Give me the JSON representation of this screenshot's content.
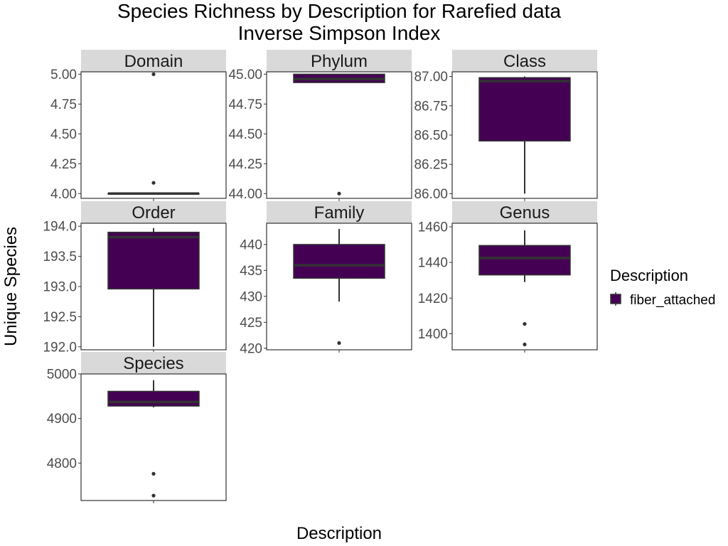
{
  "chart_data": {
    "type": "box",
    "title": "Species Richness by Description for Rarefied data",
    "subtitle": "Inverse Simpson Index",
    "xlabel": "Description",
    "ylabel": "Unique Species",
    "legend": {
      "title": "Description",
      "position": "right",
      "entries": [
        {
          "label": "fiber_attached",
          "color": "#440154"
        }
      ]
    },
    "grid": false,
    "colors": {
      "box_fill": "#440154",
      "box_line": "#333333",
      "strip_fill": "#d9d9d9",
      "panel_border": "#333333",
      "tick_label": "#4d4d4d"
    },
    "panels": [
      {
        "name": "Domain",
        "ylim": [
          3.96,
          5.02
        ],
        "ticks": [
          4.0,
          4.25,
          4.5,
          4.75,
          5.0
        ],
        "tick_labels": [
          "4.00",
          "4.25",
          "4.50",
          "4.75",
          "5.00"
        ],
        "box": {
          "lower_whisker": 4.0,
          "q1": 4.0,
          "median": 4.0,
          "q3": 4.0,
          "upper_whisker": 4.0
        },
        "outliers": [
          5.0,
          4.09
        ]
      },
      {
        "name": "Phylum",
        "ylim": [
          43.96,
          45.02
        ],
        "ticks": [
          44.0,
          44.25,
          44.5,
          44.75,
          45.0
        ],
        "tick_labels": [
          "44.00",
          "44.25",
          "44.50",
          "44.75",
          "45.00"
        ],
        "box": {
          "lower_whisker": 44.93,
          "q1": 44.93,
          "median": 44.96,
          "q3": 45.0,
          "upper_whisker": 45.0
        },
        "outliers": [
          44.0
        ]
      },
      {
        "name": "Class",
        "ylim": [
          85.96,
          87.04
        ],
        "ticks": [
          86.0,
          86.25,
          86.5,
          86.75,
          87.0
        ],
        "tick_labels": [
          "86.00",
          "86.25",
          "86.50",
          "86.75",
          "87.00"
        ],
        "box": {
          "lower_whisker": 86.0,
          "q1": 86.45,
          "median": 86.96,
          "q3": 86.99,
          "upper_whisker": 87.0
        },
        "outliers": []
      },
      {
        "name": "Order",
        "ylim": [
          191.95,
          194.05
        ],
        "ticks": [
          192.0,
          192.5,
          193.0,
          193.5,
          194.0
        ],
        "tick_labels": [
          "192.0",
          "192.5",
          "193.0",
          "193.5",
          "194.0"
        ],
        "box": {
          "lower_whisker": 192.0,
          "q1": 192.96,
          "median": 193.82,
          "q3": 193.9,
          "upper_whisker": 193.97
        },
        "outliers": []
      },
      {
        "name": "Family",
        "ylim": [
          419.7,
          444.1
        ],
        "ticks": [
          420,
          425,
          430,
          435,
          440
        ],
        "tick_labels": [
          "420",
          "425",
          "430",
          "435",
          "440"
        ],
        "box": {
          "lower_whisker": 429.0,
          "q1": 433.5,
          "median": 436.0,
          "q3": 440.0,
          "upper_whisker": 443.0
        },
        "outliers": [
          421.0
        ]
      },
      {
        "name": "Genus",
        "ylim": [
          1391.0,
          1462.0
        ],
        "ticks": [
          1400,
          1420,
          1440,
          1460
        ],
        "tick_labels": [
          "1400",
          "1420",
          "1440",
          "1460"
        ],
        "box": {
          "lower_whisker": 1429.0,
          "q1": 1433.0,
          "median": 1442.5,
          "q3": 1449.5,
          "upper_whisker": 1458.0
        },
        "outliers": [
          1405.5,
          1394.0
        ]
      },
      {
        "name": "Species",
        "ylim": [
          4716.0,
          5000.0
        ],
        "ticks": [
          4800,
          4900,
          5000
        ],
        "tick_labels": [
          "4800",
          "4900",
          "5000"
        ],
        "box": {
          "lower_whisker": 4925.0,
          "q1": 4928.0,
          "median": 4937.0,
          "q3": 4961.0,
          "upper_whisker": 4986.0
        },
        "outliers": [
          4776.0,
          4727.0
        ]
      }
    ]
  }
}
